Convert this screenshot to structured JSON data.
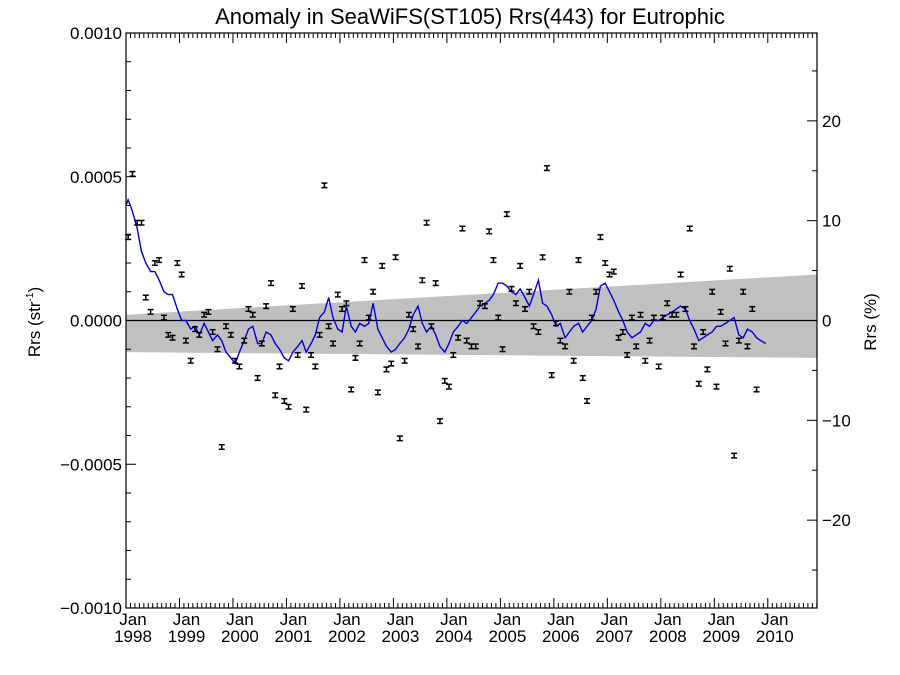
{
  "chart_data": {
    "type": "scatter",
    "title": "Anomaly in SeaWiFS(ST105) Rrs(443) for Eutrophic",
    "ylabel_left_main": "Rrs (str",
    "ylabel_left_sup": "-1",
    "ylabel_left_close": ")",
    "ylabel_right": "Rrs (%)",
    "xlim": [
      1998.0,
      2010.92
    ],
    "ylim": [
      -0.001,
      0.001
    ],
    "ylim_right": [
      -28.8,
      28.8
    ],
    "yticks_left": [
      {
        "value": 0.001,
        "label": "0.0010"
      },
      {
        "value": 0.0005,
        "label": "0.0005"
      },
      {
        "value": 0.0,
        "label": "0.0000"
      },
      {
        "value": -0.0005,
        "label": "−0.0005"
      },
      {
        "value": -0.001,
        "label": "−0.0010"
      }
    ],
    "yticks_right": [
      {
        "value": 20,
        "label": "20"
      },
      {
        "value": 10,
        "label": "10"
      },
      {
        "value": 0,
        "label": "0"
      },
      {
        "value": -10,
        "label": "−10"
      },
      {
        "value": -20,
        "label": "−20"
      }
    ],
    "xticks": [
      {
        "value": 1998,
        "month": "Jan",
        "year": "1998"
      },
      {
        "value": 1999,
        "month": "Jan",
        "year": "1999"
      },
      {
        "value": 2000,
        "month": "Jan",
        "year": "2000"
      },
      {
        "value": 2001,
        "month": "Jan",
        "year": "2001"
      },
      {
        "value": 2002,
        "month": "Jan",
        "year": "2002"
      },
      {
        "value": 2003,
        "month": "Jan",
        "year": "2003"
      },
      {
        "value": 2004,
        "month": "Jan",
        "year": "2004"
      },
      {
        "value": 2005,
        "month": "Jan",
        "year": "2005"
      },
      {
        "value": 2006,
        "month": "Jan",
        "year": "2006"
      },
      {
        "value": 2007,
        "month": "Jan",
        "year": "2007"
      },
      {
        "value": 2008,
        "month": "Jan",
        "year": "2008"
      },
      {
        "value": 2009,
        "month": "Jan",
        "year": "2009"
      },
      {
        "value": 2010,
        "month": "Jan",
        "year": "2010"
      }
    ],
    "confidence_band": {
      "upper_start": 2e-05,
      "upper_end": 0.00016,
      "lower_start": -0.00011,
      "lower_end": -0.00013,
      "color": "#c0c0c0"
    },
    "zero_line": 0.0,
    "points": [
      [
        1998.04,
        0.00029
      ],
      [
        1998.12,
        0.00051
      ],
      [
        1998.21,
        0.00034
      ],
      [
        1998.29,
        0.00034
      ],
      [
        1998.37,
        8e-05
      ],
      [
        1998.46,
        3e-05
      ],
      [
        1998.54,
        0.0002
      ],
      [
        1998.62,
        0.00021
      ],
      [
        1998.71,
        1e-05
      ],
      [
        1998.79,
        -5e-05
      ],
      [
        1998.87,
        -6e-05
      ],
      [
        1998.96,
        0.0002
      ],
      [
        1999.04,
        0.00016
      ],
      [
        1999.12,
        -7e-05
      ],
      [
        1999.21,
        -0.00014
      ],
      [
        1999.29,
        -3e-05
      ],
      [
        1999.37,
        -5e-05
      ],
      [
        1999.46,
        2e-05
      ],
      [
        1999.54,
        3e-05
      ],
      [
        1999.62,
        -4e-05
      ],
      [
        1999.71,
        -0.0001
      ],
      [
        1999.79,
        -0.00044
      ],
      [
        1999.87,
        -2e-05
      ],
      [
        1999.96,
        -5e-05
      ],
      [
        2000.04,
        -0.00014
      ],
      [
        2000.12,
        -0.00016
      ],
      [
        2000.21,
        -7e-05
      ],
      [
        2000.29,
        4e-05
      ],
      [
        2000.37,
        2e-05
      ],
      [
        2000.46,
        -0.0002
      ],
      [
        2000.54,
        -8e-05
      ],
      [
        2000.62,
        5e-05
      ],
      [
        2000.71,
        0.00013
      ],
      [
        2000.79,
        -0.00026
      ],
      [
        2000.87,
        -0.00016
      ],
      [
        2000.96,
        -0.00028
      ],
      [
        2001.04,
        -0.0003
      ],
      [
        2001.12,
        4e-05
      ],
      [
        2001.21,
        -0.00012
      ],
      [
        2001.29,
        0.00012
      ],
      [
        2001.37,
        -0.00031
      ],
      [
        2001.46,
        -0.00012
      ],
      [
        2001.54,
        -0.00016
      ],
      [
        2001.62,
        -5e-05
      ],
      [
        2001.71,
        0.00047
      ],
      [
        2001.79,
        -2e-05
      ],
      [
        2001.87,
        -8e-05
      ],
      [
        2001.96,
        9e-05
      ],
      [
        2002.04,
        4e-05
      ],
      [
        2002.12,
        6e-05
      ],
      [
        2002.21,
        -0.00024
      ],
      [
        2002.29,
        -0.00013
      ],
      [
        2002.37,
        -8e-05
      ],
      [
        2002.46,
        0.00021
      ],
      [
        2002.54,
        1e-05
      ],
      [
        2002.62,
        0.0001
      ],
      [
        2002.71,
        -0.00025
      ],
      [
        2002.79,
        0.00019
      ],
      [
        2002.87,
        -0.00017
      ],
      [
        2002.96,
        -0.00015
      ],
      [
        2003.04,
        0.00022
      ],
      [
        2003.12,
        -0.00041
      ],
      [
        2003.21,
        -0.00014
      ],
      [
        2003.29,
        2e-05
      ],
      [
        2003.37,
        -3e-05
      ],
      [
        2003.46,
        -9e-05
      ],
      [
        2003.54,
        0.00014
      ],
      [
        2003.62,
        0.00034
      ],
      [
        2003.71,
        -2e-05
      ],
      [
        2003.79,
        0.00013
      ],
      [
        2003.87,
        -0.00035
      ],
      [
        2003.96,
        -0.00021
      ],
      [
        2004.04,
        -0.00023
      ],
      [
        2004.12,
        -0.00012
      ],
      [
        2004.21,
        -6e-05
      ],
      [
        2004.29,
        0.00032
      ],
      [
        2004.37,
        -7e-05
      ],
      [
        2004.46,
        -9e-05
      ],
      [
        2004.54,
        -9e-05
      ],
      [
        2004.62,
        6e-05
      ],
      [
        2004.71,
        5e-05
      ],
      [
        2004.79,
        0.00031
      ],
      [
        2004.87,
        0.00021
      ],
      [
        2004.96,
        1e-05
      ],
      [
        2005.04,
        -0.0001
      ],
      [
        2005.12,
        0.00037
      ],
      [
        2005.21,
        0.00011
      ],
      [
        2005.29,
        6e-05
      ],
      [
        2005.37,
        0.00019
      ],
      [
        2005.46,
        4e-05
      ],
      [
        2005.54,
        0.0001
      ],
      [
        2005.62,
        -2e-05
      ],
      [
        2005.71,
        -4e-05
      ],
      [
        2005.79,
        0.00022
      ],
      [
        2005.87,
        0.00053
      ],
      [
        2005.96,
        -0.00019
      ],
      [
        2006.04,
        -1e-05
      ],
      [
        2006.12,
        -7e-05
      ],
      [
        2006.21,
        -9e-05
      ],
      [
        2006.29,
        0.0001
      ],
      [
        2006.37,
        -0.00014
      ],
      [
        2006.46,
        0.00021
      ],
      [
        2006.54,
        -0.0002
      ],
      [
        2006.62,
        -0.00028
      ],
      [
        2006.71,
        1e-05
      ],
      [
        2006.79,
        0.0001
      ],
      [
        2006.87,
        0.00029
      ],
      [
        2006.96,
        0.0002
      ],
      [
        2007.04,
        0.00016
      ],
      [
        2007.12,
        0.00017
      ],
      [
        2007.21,
        -6e-05
      ],
      [
        2007.29,
        -4e-05
      ],
      [
        2007.37,
        -0.00012
      ],
      [
        2007.46,
        1e-05
      ],
      [
        2007.54,
        -9e-05
      ],
      [
        2007.62,
        2e-05
      ],
      [
        2007.71,
        -0.00014
      ],
      [
        2007.79,
        -7e-05
      ],
      [
        2007.87,
        1e-05
      ],
      [
        2007.96,
        -0.00016
      ],
      [
        2008.04,
        1e-05
      ],
      [
        2008.12,
        6e-05
      ],
      [
        2008.21,
        2e-05
      ],
      [
        2008.29,
        2e-05
      ],
      [
        2008.37,
        0.00016
      ],
      [
        2008.46,
        4e-05
      ],
      [
        2008.54,
        0.00032
      ],
      [
        2008.62,
        -9e-05
      ],
      [
        2008.71,
        -0.00022
      ],
      [
        2008.79,
        -4e-05
      ],
      [
        2008.87,
        -0.00017
      ],
      [
        2008.96,
        0.0001
      ],
      [
        2009.04,
        -0.00023
      ],
      [
        2009.12,
        3e-05
      ],
      [
        2009.21,
        -8e-05
      ],
      [
        2009.29,
        0.00018
      ],
      [
        2009.37,
        -0.00047
      ],
      [
        2009.46,
        -7e-05
      ],
      [
        2009.54,
        0.0001
      ],
      [
        2009.62,
        -9e-05
      ],
      [
        2009.71,
        4e-05
      ],
      [
        2009.79,
        -0.00024
      ]
    ],
    "smooth_line": {
      "color": "#0000dd",
      "values": [
        [
          1998.0,
          0.0004
        ],
        [
          1998.04,
          0.00042
        ],
        [
          1998.12,
          0.00038
        ],
        [
          1998.21,
          0.00032
        ],
        [
          1998.29,
          0.00024
        ],
        [
          1998.37,
          0.0002
        ],
        [
          1998.46,
          0.00017
        ],
        [
          1998.54,
          0.00017
        ],
        [
          1998.62,
          0.00014
        ],
        [
          1998.71,
          0.0001
        ],
        [
          1998.79,
          9e-05
        ],
        [
          1998.87,
          9e-05
        ],
        [
          1998.96,
          4e-05
        ],
        [
          1999.04,
          0.0
        ],
        [
          1999.12,
          0.0
        ],
        [
          1999.21,
          -3e-05
        ],
        [
          1999.29,
          -2e-05
        ],
        [
          1999.37,
          -5e-05
        ],
        [
          1999.46,
          -1e-05
        ],
        [
          1999.54,
          -4e-05
        ],
        [
          1999.62,
          -7e-05
        ],
        [
          1999.71,
          -5e-05
        ],
        [
          1999.79,
          -7e-05
        ],
        [
          1999.87,
          -0.00011
        ],
        [
          1999.96,
          -0.00013
        ],
        [
          2000.04,
          -0.00015
        ],
        [
          2000.12,
          -0.00011
        ],
        [
          2000.21,
          -7e-05
        ],
        [
          2000.29,
          -3e-05
        ],
        [
          2000.37,
          -2e-05
        ],
        [
          2000.46,
          -8e-05
        ],
        [
          2000.54,
          -8e-05
        ],
        [
          2000.62,
          -4e-05
        ],
        [
          2000.71,
          -5e-05
        ],
        [
          2000.79,
          -8e-05
        ],
        [
          2000.87,
          -0.0001
        ],
        [
          2000.96,
          -0.00013
        ],
        [
          2001.04,
          -0.00014
        ],
        [
          2001.12,
          -0.00011
        ],
        [
          2001.21,
          -9e-05
        ],
        [
          2001.29,
          -7e-05
        ],
        [
          2001.37,
          -0.00011
        ],
        [
          2001.46,
          -8e-05
        ],
        [
          2001.54,
          -5e-05
        ],
        [
          2001.62,
          1e-05
        ],
        [
          2001.71,
          3e-05
        ],
        [
          2001.79,
          8e-05
        ],
        [
          2001.87,
          1e-05
        ],
        [
          2001.96,
          -3e-05
        ],
        [
          2002.04,
          -4e-05
        ],
        [
          2002.12,
          5e-05
        ],
        [
          2002.21,
          -2e-05
        ],
        [
          2002.29,
          -4e-05
        ],
        [
          2002.37,
          -1e-05
        ],
        [
          2002.46,
          -2e-05
        ],
        [
          2002.54,
          -1e-05
        ],
        [
          2002.62,
          6e-05
        ],
        [
          2002.71,
          -3e-05
        ],
        [
          2002.79,
          -6e-05
        ],
        [
          2002.87,
          -9e-05
        ],
        [
          2002.96,
          -0.00011
        ],
        [
          2003.04,
          -0.0001
        ],
        [
          2003.12,
          -8e-05
        ],
        [
          2003.21,
          -6e-05
        ],
        [
          2003.29,
          -3e-05
        ],
        [
          2003.37,
          2e-05
        ],
        [
          2003.46,
          5e-05
        ],
        [
          2003.54,
          -1e-05
        ],
        [
          2003.62,
          -4e-05
        ],
        [
          2003.71,
          -2e-05
        ],
        [
          2003.79,
          -5e-05
        ],
        [
          2003.87,
          -9e-05
        ],
        [
          2003.96,
          -0.00011
        ],
        [
          2004.04,
          -8e-05
        ],
        [
          2004.12,
          -4e-05
        ],
        [
          2004.21,
          -2e-05
        ],
        [
          2004.29,
          0.0
        ],
        [
          2004.37,
          -1e-05
        ],
        [
          2004.46,
          1e-05
        ],
        [
          2004.54,
          3e-05
        ],
        [
          2004.62,
          5e-05
        ],
        [
          2004.71,
          6e-05
        ],
        [
          2004.79,
          7e-05
        ],
        [
          2004.87,
          9e-05
        ],
        [
          2004.96,
          0.00013
        ],
        [
          2005.04,
          0.00013
        ],
        [
          2005.12,
          0.00012
        ],
        [
          2005.21,
          0.0001
        ],
        [
          2005.29,
          9e-05
        ],
        [
          2005.37,
          0.00011
        ],
        [
          2005.46,
          8e-05
        ],
        [
          2005.54,
          5e-05
        ],
        [
          2005.62,
          9e-05
        ],
        [
          2005.71,
          0.00014
        ],
        [
          2005.79,
          6e-05
        ],
        [
          2005.87,
          5e-05
        ],
        [
          2005.96,
          2e-05
        ],
        [
          2006.04,
          -2e-05
        ],
        [
          2006.12,
          -1e-05
        ],
        [
          2006.21,
          -6e-05
        ],
        [
          2006.29,
          -4e-05
        ],
        [
          2006.37,
          -2e-05
        ],
        [
          2006.46,
          -1e-05
        ],
        [
          2006.54,
          -4e-05
        ],
        [
          2006.62,
          -2e-05
        ],
        [
          2006.71,
          0.0
        ],
        [
          2006.79,
          4e-05
        ],
        [
          2006.87,
          0.00012
        ],
        [
          2006.96,
          0.00013
        ],
        [
          2007.04,
          0.0001
        ],
        [
          2007.12,
          7e-05
        ],
        [
          2007.21,
          3e-05
        ],
        [
          2007.29,
          0.0
        ],
        [
          2007.37,
          -4e-05
        ],
        [
          2007.46,
          -6e-05
        ],
        [
          2007.54,
          -5e-05
        ],
        [
          2007.62,
          -4e-05
        ],
        [
          2007.71,
          -1e-05
        ],
        [
          2007.79,
          -2e-05
        ],
        [
          2007.87,
          0.0
        ],
        [
          2007.96,
          0.0
        ],
        [
          2008.04,
          1e-05
        ],
        [
          2008.12,
          2e-05
        ],
        [
          2008.21,
          3e-05
        ],
        [
          2008.29,
          4e-05
        ],
        [
          2008.37,
          5e-05
        ],
        [
          2008.46,
          4e-05
        ],
        [
          2008.54,
          0.0
        ],
        [
          2008.62,
          -3e-05
        ],
        [
          2008.71,
          -7e-05
        ],
        [
          2008.79,
          -6e-05
        ],
        [
          2008.87,
          -5e-05
        ],
        [
          2008.96,
          -4e-05
        ],
        [
          2009.04,
          -2e-05
        ],
        [
          2009.12,
          -2e-05
        ],
        [
          2009.21,
          -1e-05
        ],
        [
          2009.29,
          0.0
        ],
        [
          2009.37,
          1e-05
        ],
        [
          2009.46,
          -5e-05
        ],
        [
          2009.54,
          -6e-05
        ],
        [
          2009.62,
          -3e-05
        ],
        [
          2009.71,
          -4e-05
        ],
        [
          2009.79,
          -6e-05
        ],
        [
          2009.87,
          -7e-05
        ],
        [
          2009.96,
          -8e-05
        ]
      ]
    },
    "error_bar_half": 8e-06
  }
}
